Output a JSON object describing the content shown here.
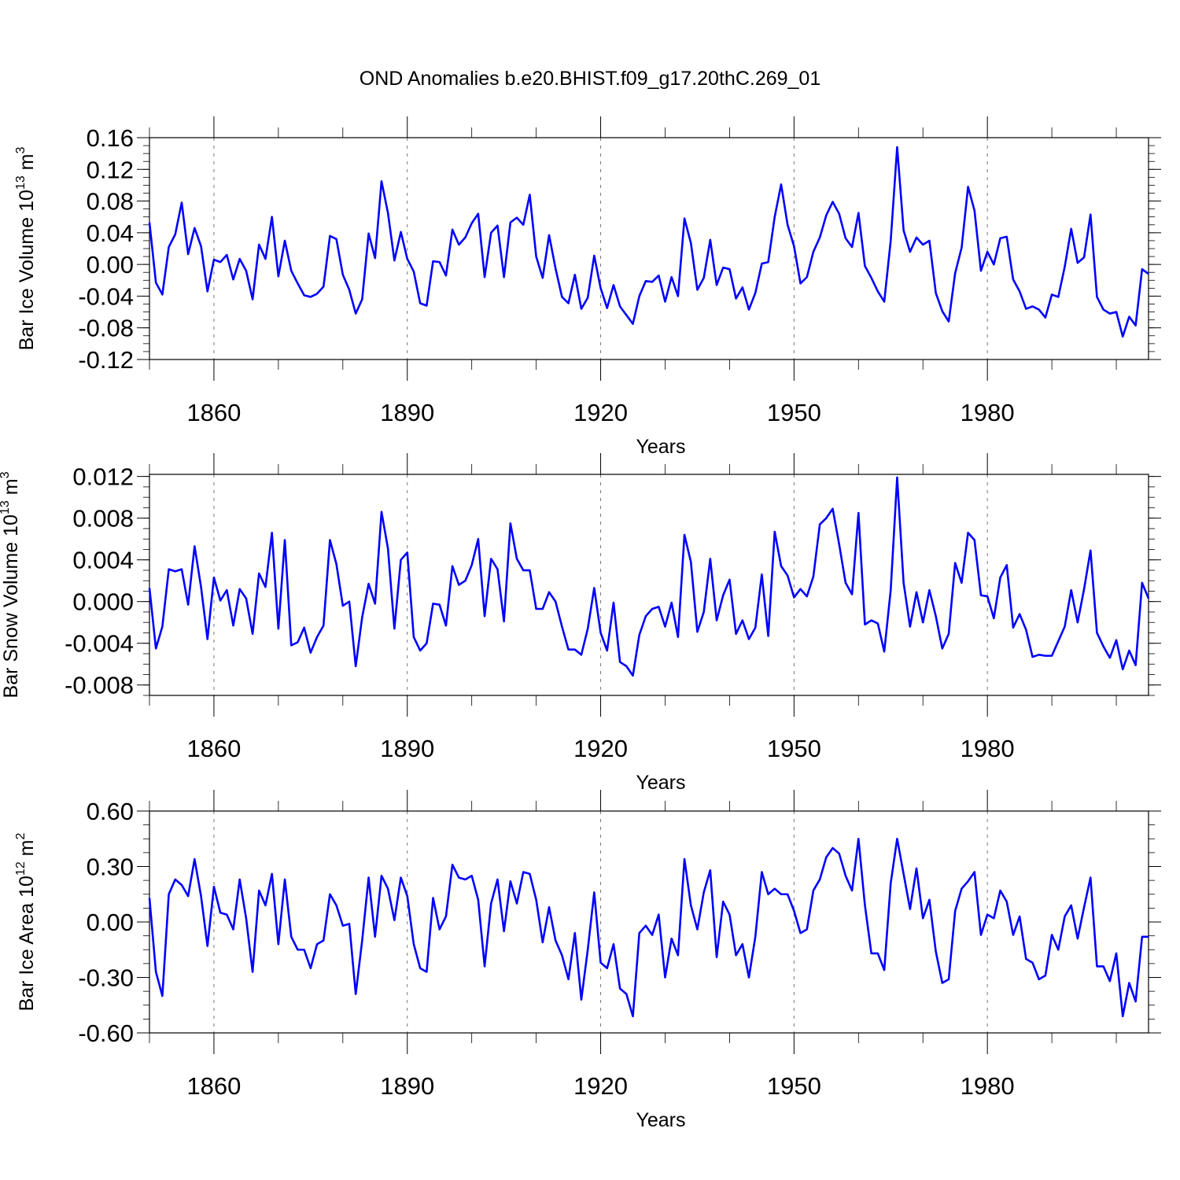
{
  "figure_title": "OND Anomalies b.e20.BHIST.f09_g17.20thC.269_01",
  "chart_data": [
    {
      "type": "line",
      "title": "OND Anomalies b.e20.BHIST.f09_g17.20thC.269_01",
      "ylabel_parts": [
        "Bar Ice Volume 10",
        "13",
        " m",
        "3"
      ],
      "xlabel": "Years",
      "xlim": [
        1850,
        2005
      ],
      "ylim": [
        -0.12,
        0.16
      ],
      "yticks": [
        -0.12,
        -0.08,
        -0.04,
        0.0,
        0.04,
        0.08,
        0.12,
        0.16
      ],
      "ytick_labels": [
        "-0.12",
        "-0.08",
        "-0.04",
        "0.00",
        "0.04",
        "0.08",
        "0.12",
        "0.16"
      ],
      "xticks": [
        1860,
        1890,
        1920,
        1950,
        1980
      ],
      "xtick_labels": [
        "1860",
        "1890",
        "1920",
        "1950",
        "1980"
      ],
      "color": "#0000ff",
      "x_start": 1850,
      "values": [
        0.053,
        -0.023,
        -0.038,
        0.022,
        0.038,
        0.078,
        0.013,
        0.046,
        0.023,
        -0.034,
        0.006,
        0.003,
        0.012,
        -0.019,
        0.007,
        -0.008,
        -0.044,
        0.025,
        0.007,
        0.06,
        -0.015,
        0.03,
        -0.008,
        -0.024,
        -0.039,
        -0.041,
        -0.037,
        -0.028,
        0.036,
        0.032,
        -0.013,
        -0.032,
        -0.062,
        -0.044,
        0.039,
        0.008,
        0.105,
        0.065,
        0.005,
        0.041,
        0.007,
        -0.009,
        -0.049,
        -0.052,
        0.004,
        0.003,
        -0.014,
        0.044,
        0.025,
        0.034,
        0.052,
        0.064,
        -0.016,
        0.04,
        0.049,
        -0.016,
        0.053,
        0.059,
        0.05,
        0.088,
        0.01,
        -0.017,
        0.037,
        -0.005,
        -0.041,
        -0.049,
        -0.013,
        -0.056,
        -0.042,
        0.011,
        -0.03,
        -0.055,
        -0.026,
        -0.053,
        -0.064,
        -0.075,
        -0.04,
        -0.021,
        -0.022,
        -0.014,
        -0.047,
        -0.016,
        -0.04,
        0.058,
        0.027,
        -0.032,
        -0.017,
        0.031,
        -0.026,
        -0.004,
        -0.006,
        -0.043,
        -0.029,
        -0.057,
        -0.036,
        0.001,
        0.003,
        0.06,
        0.101,
        0.05,
        0.023,
        -0.024,
        -0.016,
        0.016,
        0.034,
        0.062,
        0.079,
        0.064,
        0.033,
        0.022,
        0.065,
        -0.002,
        -0.017,
        -0.034,
        -0.047,
        0.03,
        0.148,
        0.043,
        0.016,
        0.034,
        0.025,
        0.03,
        -0.036,
        -0.059,
        -0.072,
        -0.011,
        0.021,
        0.098,
        0.068,
        -0.008,
        0.016,
        0.0,
        0.033,
        0.035,
        -0.019,
        -0.034,
        -0.056,
        -0.053,
        -0.057,
        -0.067,
        -0.038,
        -0.041,
        -0.003,
        0.045,
        0.002,
        0.009,
        0.063,
        -0.041,
        -0.057,
        -0.062,
        -0.06,
        -0.091,
        -0.066,
        -0.077,
        -0.006,
        -0.012
      ]
    },
    {
      "type": "line",
      "ylabel_parts": [
        "Bar Snow Volume 10",
        "13",
        " m",
        "3"
      ],
      "xlabel": "Years",
      "xlim": [
        1850,
        2005
      ],
      "ylim": [
        -0.009,
        0.0122
      ],
      "yticks": [
        -0.008,
        -0.004,
        0.0,
        0.004,
        0.008,
        0.012
      ],
      "ytick_labels": [
        "-0.008",
        "-0.004",
        "0.000",
        "0.004",
        "0.008",
        "0.012"
      ],
      "xticks": [
        1860,
        1890,
        1920,
        1950,
        1980
      ],
      "xtick_labels": [
        "1860",
        "1890",
        "1920",
        "1950",
        "1980"
      ],
      "color": "#0000ff",
      "x_start": 1850,
      "values": [
        0.0013,
        -0.0045,
        -0.0024,
        0.0031,
        0.0029,
        0.0031,
        -0.0003,
        0.0053,
        0.0014,
        -0.0036,
        0.0023,
        0.0001,
        0.0011,
        -0.0023,
        0.0012,
        0.0003,
        -0.0031,
        0.0027,
        0.0014,
        0.0066,
        -0.0026,
        0.0059,
        -0.0042,
        -0.0039,
        -0.0025,
        -0.0049,
        -0.0034,
        -0.0023,
        0.0059,
        0.0036,
        -0.0004,
        0.0,
        -0.0062,
        -0.0015,
        0.0017,
        -0.0002,
        0.0086,
        0.0051,
        -0.0026,
        0.004,
        0.0047,
        -0.0034,
        -0.0047,
        -0.004,
        -0.0002,
        -0.0003,
        -0.0023,
        0.0034,
        0.0016,
        0.002,
        0.0035,
        0.006,
        -0.0014,
        0.0041,
        0.0031,
        -0.0019,
        0.0075,
        0.0041,
        0.003,
        0.003,
        -0.0007,
        -0.0007,
        0.0009,
        0.0,
        -0.0024,
        -0.0046,
        -0.0046,
        -0.0051,
        -0.0026,
        0.0013,
        -0.003,
        -0.0047,
        -0.0001,
        -0.0058,
        -0.0062,
        -0.0071,
        -0.0032,
        -0.0014,
        -0.0007,
        -0.0005,
        -0.0024,
        -0.0001,
        -0.0034,
        0.0064,
        0.0038,
        -0.0029,
        -0.001,
        0.0041,
        -0.0018,
        0.0006,
        0.0021,
        -0.0031,
        -0.0018,
        -0.0036,
        -0.0025,
        0.0026,
        -0.0033,
        0.0067,
        0.0034,
        0.0025,
        0.0004,
        0.0012,
        0.0005,
        0.0024,
        0.0074,
        0.008,
        0.0089,
        0.0055,
        0.0018,
        0.0007,
        0.0085,
        -0.0022,
        -0.0018,
        -0.0021,
        -0.0048,
        0.0011,
        0.0119,
        0.0018,
        -0.0024,
        0.0009,
        -0.002,
        0.0011,
        -0.0014,
        -0.0045,
        -0.0031,
        0.0037,
        0.0018,
        0.0066,
        0.0059,
        0.0006,
        0.0005,
        -0.0016,
        0.0023,
        0.0035,
        -0.0025,
        -0.0012,
        -0.0027,
        -0.0053,
        -0.0051,
        -0.0052,
        -0.0052,
        -0.0038,
        -0.0024,
        0.0011,
        -0.002,
        0.0012,
        0.0049,
        -0.003,
        -0.0043,
        -0.0054,
        -0.0037,
        -0.0065,
        -0.0047,
        -0.0061,
        0.0018,
        0.0003
      ]
    },
    {
      "type": "line",
      "ylabel_parts": [
        "Bar Ice Area 10",
        "12",
        " m",
        "2"
      ],
      "xlabel": "Years",
      "xlim": [
        1850,
        2005
      ],
      "ylim": [
        -0.6,
        0.6
      ],
      "yticks": [
        -0.6,
        -0.3,
        0.0,
        0.3,
        0.6
      ],
      "ytick_labels": [
        "-0.60",
        "-0.30",
        "0.00",
        "0.30",
        "0.60"
      ],
      "xticks": [
        1860,
        1890,
        1920,
        1950,
        1980
      ],
      "xtick_labels": [
        "1860",
        "1890",
        "1920",
        "1950",
        "1980"
      ],
      "color": "#0000ff",
      "x_start": 1850,
      "values": [
        0.13,
        -0.27,
        -0.4,
        0.15,
        0.23,
        0.2,
        0.14,
        0.34,
        0.14,
        -0.13,
        0.19,
        0.05,
        0.04,
        -0.04,
        0.23,
        0.02,
        -0.27,
        0.17,
        0.09,
        0.26,
        -0.12,
        0.23,
        -0.08,
        -0.15,
        -0.15,
        -0.25,
        -0.12,
        -0.1,
        0.15,
        0.09,
        -0.02,
        -0.01,
        -0.39,
        -0.1,
        0.24,
        -0.08,
        0.25,
        0.18,
        0.01,
        0.24,
        0.14,
        -0.12,
        -0.25,
        -0.27,
        0.13,
        -0.04,
        0.03,
        0.31,
        0.24,
        0.23,
        0.25,
        0.12,
        -0.24,
        0.1,
        0.23,
        -0.05,
        0.22,
        0.1,
        0.27,
        0.26,
        0.12,
        -0.11,
        0.08,
        -0.1,
        -0.18,
        -0.31,
        -0.06,
        -0.42,
        -0.15,
        0.16,
        -0.22,
        -0.25,
        -0.12,
        -0.36,
        -0.39,
        -0.51,
        -0.06,
        -0.02,
        -0.07,
        0.04,
        -0.3,
        -0.09,
        -0.18,
        0.34,
        0.09,
        -0.04,
        0.16,
        0.28,
        -0.19,
        0.11,
        0.04,
        -0.18,
        -0.12,
        -0.3,
        -0.08,
        0.27,
        0.15,
        0.18,
        0.15,
        0.15,
        0.06,
        -0.06,
        -0.04,
        0.17,
        0.23,
        0.35,
        0.4,
        0.37,
        0.25,
        0.17,
        0.45,
        0.09,
        -0.17,
        -0.17,
        -0.26,
        0.21,
        0.45,
        0.26,
        0.07,
        0.29,
        0.02,
        0.12,
        -0.16,
        -0.33,
        -0.31,
        0.06,
        0.18,
        0.22,
        0.27,
        -0.07,
        0.04,
        0.02,
        0.17,
        0.11,
        -0.07,
        0.03,
        -0.2,
        -0.22,
        -0.31,
        -0.29,
        -0.07,
        -0.15,
        0.03,
        0.09,
        -0.09,
        0.08,
        0.24,
        -0.24,
        -0.24,
        -0.32,
        -0.17,
        -0.51,
        -0.33,
        -0.43,
        -0.08,
        -0.08
      ]
    }
  ]
}
